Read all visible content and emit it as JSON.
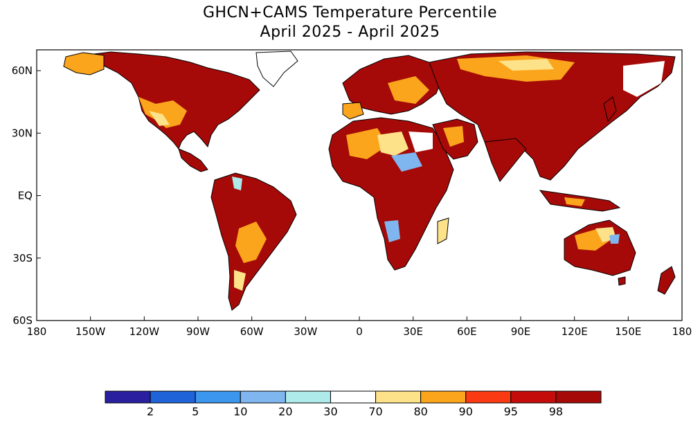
{
  "title": {
    "line1": "GHCN+CAMS Temperature Percentile",
    "line2": "April 2025 - April 2025"
  },
  "axes": {
    "lat_labels": [
      "60N",
      "30N",
      "EQ",
      "30S",
      "60S"
    ],
    "lat_values": [
      60,
      30,
      0,
      -30,
      -60
    ],
    "lon_labels": [
      "180",
      "150W",
      "120W",
      "90W",
      "60W",
      "30W",
      "0",
      "30E",
      "60E",
      "90E",
      "120E",
      "150E",
      "180"
    ],
    "lon_values": [
      -180,
      -150,
      -120,
      -90,
      -60,
      -30,
      0,
      30,
      60,
      90,
      120,
      150,
      180
    ],
    "lat_range": [
      -60,
      70
    ],
    "lon_range": [
      -180,
      180
    ]
  },
  "colorbar": {
    "colors": [
      "#2a1f9e",
      "#1f63d8",
      "#3d96ee",
      "#7fb6f0",
      "#aeeaea",
      "#ffffff",
      "#fde28a",
      "#fba51c",
      "#fa3a12",
      "#c40d0a",
      "#a50a08"
    ],
    "labels": [
      "2",
      "5",
      "10",
      "20",
      "30",
      "70",
      "80",
      "90",
      "95",
      "98"
    ]
  },
  "legend_categories": {
    "very_warm": "#a50a08",
    "warm": "#fba51c",
    "slightly_warm": "#fde28a",
    "normal": "#ffffff",
    "cool": "#7fb6f0",
    "very_cool": "#aeeaea"
  }
}
